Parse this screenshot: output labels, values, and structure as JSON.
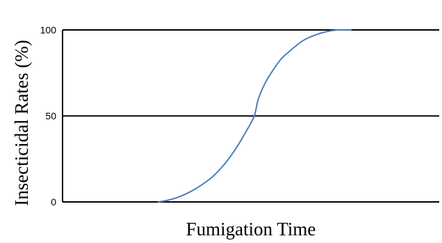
{
  "chart_data": {
    "type": "line",
    "title": "",
    "xlabel": "Fumigation Time",
    "ylabel": "Insecticidal Rates (%)",
    "ylim": [
      0,
      100
    ],
    "yticks": [
      {
        "value": 0,
        "label": "0"
      },
      {
        "value": 50,
        "label": "50"
      },
      {
        "value": 100,
        "label": "100"
      }
    ],
    "grid": true,
    "legend": "none",
    "xlim": [
      0,
      100
    ],
    "series": [
      {
        "color": "#4a7ebb",
        "x": [
          25.3,
          28,
          31,
          34,
          37,
          40,
          43,
          46,
          49,
          50.9,
          52,
          54,
          56,
          58,
          61,
          64,
          67,
          70,
          73,
          76.7
        ],
        "y": [
          0,
          1,
          3,
          6,
          10,
          15,
          22,
          31,
          42,
          50,
          60,
          70,
          77,
          83,
          89,
          94,
          97,
          99,
          100,
          100
        ]
      }
    ]
  }
}
